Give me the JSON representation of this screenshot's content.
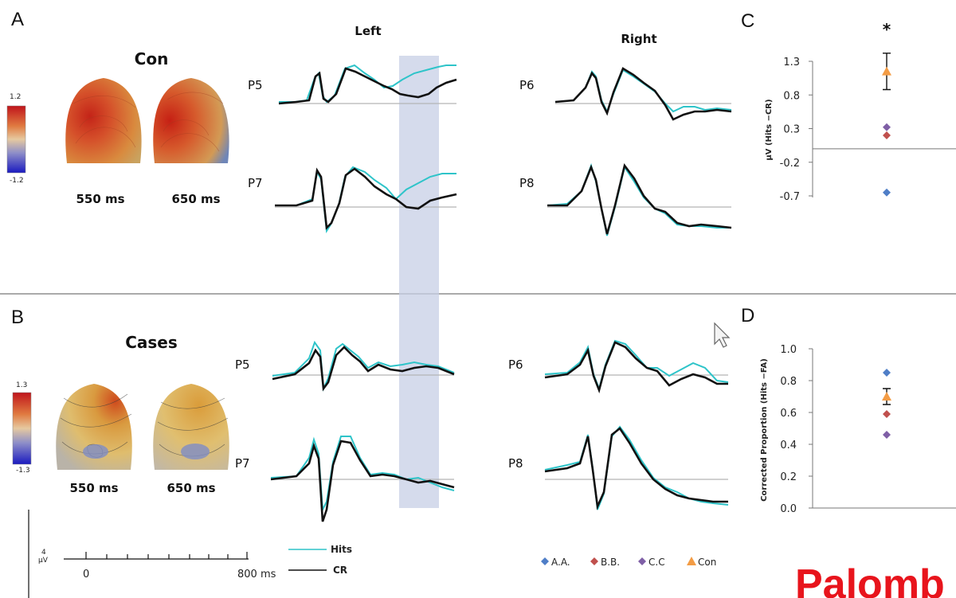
{
  "panels": {
    "a_letter": "A",
    "b_letter": "B",
    "c_letter": "C",
    "d_letter": "D"
  },
  "topomaps": {
    "con_title": "Con",
    "cases_title": "Cases",
    "con_scale_max": "1.2",
    "con_scale_min": "-1.2",
    "cases_scale_max": "1.3",
    "cases_scale_min": "-1.3",
    "time1": "550 ms",
    "time2": "650 ms"
  },
  "erp": {
    "left_header": "Left",
    "right_header": "Right",
    "channels": [
      "P5",
      "P7",
      "P6",
      "P8",
      "P5",
      "P7",
      "P6",
      "P8"
    ],
    "scale_unit_value": "4",
    "scale_unit": "µV",
    "time_start": "0",
    "time_end": "800 ms",
    "legend_hits": "Hits",
    "legend_cr": "CR",
    "hits_color": "#2ec4c9",
    "cr_color": "#111111",
    "highlight_color": "#c7cfe6"
  },
  "chart_data": [
    {
      "type": "scatter",
      "panel": "C",
      "title": "",
      "xlabel": "",
      "ylabel": "µV (Hits −CR)",
      "ylim": [
        -0.7,
        1.3
      ],
      "yticks": [
        "1.3",
        "0.8",
        "0.3",
        "-0.2",
        "-0.7"
      ],
      "annotation": "*",
      "series": [
        {
          "name": "A.A.",
          "values": [
            -0.65
          ],
          "color": "#4f7ec7",
          "marker": "diamond"
        },
        {
          "name": "B.B.",
          "values": [
            0.2
          ],
          "color": "#c0504d",
          "marker": "diamond"
        },
        {
          "name": "C.C",
          "values": [
            0.32
          ],
          "color": "#7f5fa6",
          "marker": "diamond"
        },
        {
          "name": "Con",
          "values": [
            1.15
          ],
          "color": "#f39c45",
          "marker": "triangle",
          "error": 0.27
        }
      ]
    },
    {
      "type": "scatter",
      "panel": "D",
      "title": "",
      "xlabel": "",
      "ylabel": "Corrected Proportion (Hits −FA)",
      "ylim": [
        0.0,
        1.0
      ],
      "yticks": [
        "1.0",
        "0.8",
        "0.6",
        "0.4",
        "0.2",
        "0.0"
      ],
      "series": [
        {
          "name": "A.A.",
          "values": [
            0.85
          ],
          "color": "#4f7ec7",
          "marker": "diamond"
        },
        {
          "name": "B.B.",
          "values": [
            0.59
          ],
          "color": "#c0504d",
          "marker": "diamond"
        },
        {
          "name": "C.C",
          "values": [
            0.46
          ],
          "color": "#7f5fa6",
          "marker": "diamond"
        },
        {
          "name": "Con",
          "values": [
            0.7
          ],
          "color": "#f39c45",
          "marker": "triangle",
          "error": 0.05
        }
      ]
    }
  ],
  "legend": {
    "items": [
      {
        "label": "A.A.",
        "color": "#4f7ec7",
        "marker": "diamond"
      },
      {
        "label": "B.B.",
        "color": "#c0504d",
        "marker": "diamond"
      },
      {
        "label": "C.C",
        "color": "#7f5fa6",
        "marker": "diamond"
      },
      {
        "label": "Con",
        "color": "#f39c45",
        "marker": "triangle"
      }
    ]
  },
  "watermark": {
    "text": "Palomb",
    "color": "#e8141c"
  }
}
